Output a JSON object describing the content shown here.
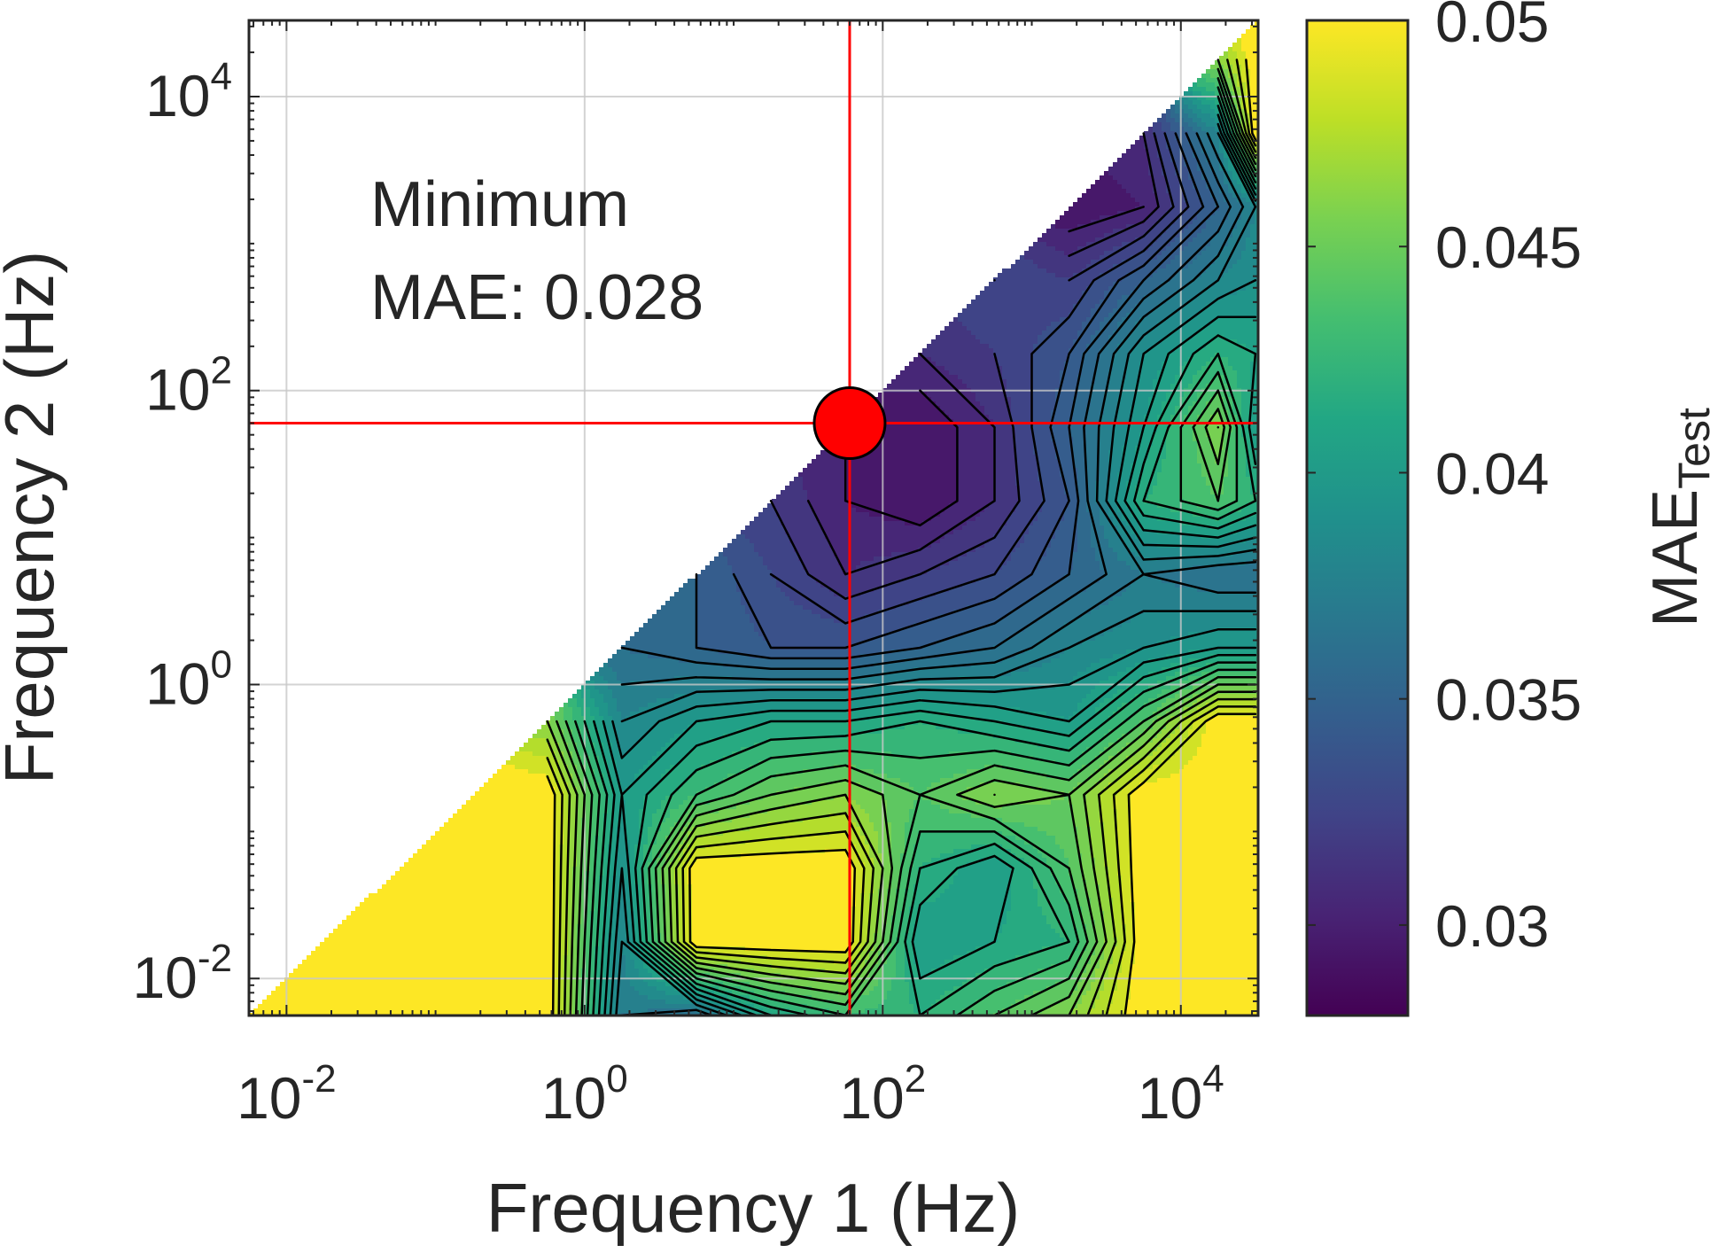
{
  "chart_data": {
    "type": "heatmap",
    "title": "",
    "xlabel": "Frequency 1 (Hz)",
    "ylabel": "Frequency 2 (Hz)",
    "x_scale": "log",
    "y_scale": "log",
    "xlim": [
      0.0056,
      33000
    ],
    "ylim": [
      0.0056,
      33000
    ],
    "x_ticks": [
      {
        "base": "10",
        "exp": "-2",
        "value": 0.01
      },
      {
        "base": "10",
        "exp": "0",
        "value": 1
      },
      {
        "base": "10",
        "exp": "2",
        "value": 100
      },
      {
        "base": "10",
        "exp": "4",
        "value": 10000
      }
    ],
    "y_ticks": [
      {
        "base": "10",
        "exp": "-2",
        "value": 0.01
      },
      {
        "base": "10",
        "exp": "0",
        "value": 1
      },
      {
        "base": "10",
        "exp": "2",
        "value": 100
      },
      {
        "base": "10",
        "exp": "4",
        "value": 10000
      }
    ],
    "grid": true,
    "colormap": "viridis",
    "colorbar": {
      "label": "MAE",
      "label_subscript": "Test",
      "lim": [
        0.028,
        0.05
      ],
      "ticks": [
        0.03,
        0.035,
        0.04,
        0.045,
        0.05
      ],
      "tick_labels": [
        "0.03",
        "0.035",
        "0.04",
        "0.045",
        "0.05"
      ]
    },
    "grid_x_log10": [
      -2.25,
      -1.75,
      -1.25,
      -0.75,
      -0.25,
      0.25,
      0.75,
      1.25,
      1.75,
      2.25,
      2.75,
      3.25,
      3.75,
      4.25,
      4.5
    ],
    "grid_y_log10": [
      -2.25,
      -1.75,
      -1.25,
      -0.75,
      -0.25,
      0.25,
      0.75,
      1.25,
      1.75,
      2.25,
      2.75,
      3.25,
      3.75,
      4.25,
      4.5
    ],
    "z": [
      [
        0.05,
        0.05,
        0.05,
        0.05,
        0.05,
        0.037,
        0.036,
        0.041,
        0.043,
        0.042,
        0.044,
        0.046,
        0.05,
        0.05,
        0.05
      ],
      [
        null,
        0.05,
        0.05,
        0.05,
        0.05,
        0.038,
        0.05,
        0.05,
        0.05,
        0.04,
        0.041,
        0.042,
        0.05,
        0.05,
        0.05
      ],
      [
        null,
        null,
        0.05,
        0.05,
        0.05,
        0.039,
        0.05,
        0.05,
        0.05,
        0.042,
        0.04,
        0.044,
        0.05,
        0.05,
        0.05
      ],
      [
        null,
        null,
        null,
        0.05,
        0.05,
        0.04,
        0.043,
        0.045,
        0.046,
        0.044,
        0.046,
        0.045,
        0.05,
        0.05,
        0.05
      ],
      [
        null,
        null,
        null,
        null,
        0.046,
        0.038,
        0.04,
        0.041,
        0.041,
        0.042,
        0.041,
        0.04,
        0.044,
        0.05,
        0.05
      ],
      [
        null,
        null,
        null,
        null,
        null,
        0.036,
        0.035,
        0.034,
        0.034,
        0.035,
        0.036,
        0.038,
        0.039,
        0.04,
        0.04
      ],
      [
        null,
        null,
        null,
        null,
        null,
        null,
        0.035,
        0.033,
        0.031,
        0.032,
        0.033,
        0.035,
        0.037,
        0.036,
        0.036
      ],
      [
        null,
        null,
        null,
        null,
        null,
        null,
        null,
        0.032,
        0.03,
        0.029,
        0.031,
        0.034,
        0.042,
        0.044,
        0.042
      ],
      [
        null,
        null,
        null,
        null,
        null,
        null,
        null,
        null,
        0.03,
        0.029,
        0.031,
        0.035,
        0.04,
        0.046,
        0.04
      ],
      [
        null,
        null,
        null,
        null,
        null,
        null,
        null,
        null,
        null,
        0.031,
        0.032,
        0.034,
        0.039,
        0.042,
        0.041
      ],
      [
        null,
        null,
        null,
        null,
        null,
        null,
        null,
        null,
        null,
        null,
        0.033,
        0.032,
        0.035,
        0.038,
        0.039
      ],
      [
        null,
        null,
        null,
        null,
        null,
        null,
        null,
        null,
        null,
        null,
        null,
        0.029,
        0.03,
        0.035,
        0.038
      ],
      [
        null,
        null,
        null,
        null,
        null,
        null,
        null,
        null,
        null,
        null,
        null,
        null,
        0.031,
        0.038,
        0.05
      ],
      [
        null,
        null,
        null,
        null,
        null,
        null,
        null,
        null,
        null,
        null,
        null,
        null,
        null,
        0.046,
        0.05
      ],
      [
        null,
        null,
        null,
        null,
        null,
        null,
        null,
        null,
        null,
        null,
        null,
        null,
        null,
        null,
        0.05
      ]
    ],
    "contour_levels": [
      0.029,
      0.03,
      0.031,
      0.032,
      0.033,
      0.034,
      0.035,
      0.036,
      0.037,
      0.038,
      0.039,
      0.04,
      0.041,
      0.042,
      0.043,
      0.044,
      0.045,
      0.046,
      0.047,
      0.048,
      0.049
    ],
    "minimum_point": {
      "x": 60,
      "y": 60
    },
    "annotation": [
      "Minimum",
      "MAE: 0.028"
    ],
    "colors": {
      "marker": "#ff0000",
      "crosshair": "#ff0000",
      "contour": "#000000"
    }
  }
}
